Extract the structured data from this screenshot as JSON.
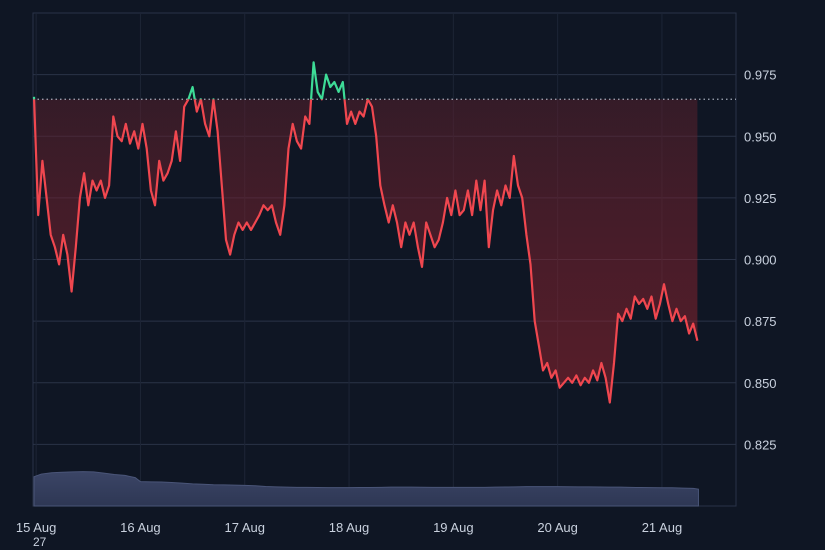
{
  "chart_data": {
    "type": "line",
    "title": "",
    "xlabel": "",
    "ylabel": "",
    "ylim": [
      0.8,
      1.0
    ],
    "y_ticks": [
      "0.975",
      "0.950",
      "0.925",
      "0.900",
      "0.875",
      "0.850",
      "0.825"
    ],
    "x_ticks": [
      {
        "label": "15 Aug",
        "day": 15
      },
      {
        "label": "16 Aug",
        "day": 16
      },
      {
        "label": "17 Aug",
        "day": 17
      },
      {
        "label": "18 Aug",
        "day": 18
      },
      {
        "label": "19 Aug",
        "day": 19
      },
      {
        "label": "20 Aug",
        "day": 20
      },
      {
        "label": "21 Aug",
        "day": 21
      }
    ],
    "xlim": [
      14.97,
      21.71
    ],
    "reference_line": 0.965,
    "grid": true,
    "legend": "none",
    "colors": {
      "above_reference": "#3ddc97",
      "below_reference": "#f0474f",
      "volume": "#3b4566",
      "reference_line": "#c9d1de"
    },
    "series": [
      {
        "values": [
          [
            14.98,
            0.966
          ],
          [
            15.02,
            0.918
          ],
          [
            15.06,
            0.94
          ],
          [
            15.1,
            0.925
          ],
          [
            15.14,
            0.91
          ],
          [
            15.18,
            0.905
          ],
          [
            15.22,
            0.898
          ],
          [
            15.26,
            0.91
          ],
          [
            15.3,
            0.902
          ],
          [
            15.34,
            0.887
          ],
          [
            15.38,
            0.905
          ],
          [
            15.42,
            0.925
          ],
          [
            15.46,
            0.935
          ],
          [
            15.5,
            0.922
          ],
          [
            15.54,
            0.932
          ],
          [
            15.58,
            0.928
          ],
          [
            15.62,
            0.932
          ],
          [
            15.66,
            0.925
          ],
          [
            15.7,
            0.93
          ],
          [
            15.74,
            0.958
          ],
          [
            15.78,
            0.95
          ],
          [
            15.82,
            0.948
          ],
          [
            15.86,
            0.955
          ],
          [
            15.9,
            0.947
          ],
          [
            15.94,
            0.952
          ],
          [
            15.98,
            0.945
          ],
          [
            16.02,
            0.955
          ],
          [
            16.06,
            0.945
          ],
          [
            16.1,
            0.928
          ],
          [
            16.14,
            0.922
          ],
          [
            16.18,
            0.94
          ],
          [
            16.22,
            0.932
          ],
          [
            16.26,
            0.935
          ],
          [
            16.3,
            0.94
          ],
          [
            16.34,
            0.952
          ],
          [
            16.38,
            0.94
          ],
          [
            16.42,
            0.962
          ],
          [
            16.46,
            0.965
          ],
          [
            16.5,
            0.97
          ],
          [
            16.54,
            0.96
          ],
          [
            16.58,
            0.965
          ],
          [
            16.62,
            0.955
          ],
          [
            16.66,
            0.95
          ],
          [
            16.7,
            0.965
          ],
          [
            16.74,
            0.952
          ],
          [
            16.78,
            0.93
          ],
          [
            16.82,
            0.908
          ],
          [
            16.86,
            0.902
          ],
          [
            16.9,
            0.91
          ],
          [
            16.94,
            0.915
          ],
          [
            16.98,
            0.912
          ],
          [
            17.02,
            0.915
          ],
          [
            17.06,
            0.912
          ],
          [
            17.1,
            0.915
          ],
          [
            17.14,
            0.918
          ],
          [
            17.18,
            0.922
          ],
          [
            17.22,
            0.92
          ],
          [
            17.26,
            0.922
          ],
          [
            17.3,
            0.915
          ],
          [
            17.34,
            0.91
          ],
          [
            17.38,
            0.922
          ],
          [
            17.42,
            0.945
          ],
          [
            17.46,
            0.955
          ],
          [
            17.5,
            0.948
          ],
          [
            17.54,
            0.945
          ],
          [
            17.58,
            0.958
          ],
          [
            17.62,
            0.955
          ],
          [
            17.66,
            0.98
          ],
          [
            17.7,
            0.968
          ],
          [
            17.74,
            0.965
          ],
          [
            17.78,
            0.975
          ],
          [
            17.82,
            0.97
          ],
          [
            17.86,
            0.972
          ],
          [
            17.9,
            0.968
          ],
          [
            17.94,
            0.972
          ],
          [
            17.98,
            0.955
          ],
          [
            18.02,
            0.96
          ],
          [
            18.06,
            0.955
          ],
          [
            18.1,
            0.96
          ],
          [
            18.14,
            0.958
          ],
          [
            18.18,
            0.965
          ],
          [
            18.22,
            0.962
          ],
          [
            18.26,
            0.95
          ],
          [
            18.3,
            0.93
          ],
          [
            18.34,
            0.922
          ],
          [
            18.38,
            0.915
          ],
          [
            18.42,
            0.922
          ],
          [
            18.46,
            0.915
          ],
          [
            18.5,
            0.905
          ],
          [
            18.54,
            0.915
          ],
          [
            18.58,
            0.91
          ],
          [
            18.62,
            0.915
          ],
          [
            18.66,
            0.905
          ],
          [
            18.7,
            0.897
          ],
          [
            18.74,
            0.915
          ],
          [
            18.78,
            0.91
          ],
          [
            18.82,
            0.905
          ],
          [
            18.86,
            0.908
          ],
          [
            18.9,
            0.915
          ],
          [
            18.94,
            0.925
          ],
          [
            18.98,
            0.918
          ],
          [
            19.02,
            0.928
          ],
          [
            19.06,
            0.918
          ],
          [
            19.1,
            0.92
          ],
          [
            19.14,
            0.928
          ],
          [
            19.18,
            0.918
          ],
          [
            19.22,
            0.932
          ],
          [
            19.26,
            0.92
          ],
          [
            19.3,
            0.932
          ],
          [
            19.34,
            0.905
          ],
          [
            19.38,
            0.92
          ],
          [
            19.42,
            0.928
          ],
          [
            19.46,
            0.922
          ],
          [
            19.5,
            0.93
          ],
          [
            19.54,
            0.925
          ],
          [
            19.58,
            0.942
          ],
          [
            19.62,
            0.93
          ],
          [
            19.66,
            0.925
          ],
          [
            19.7,
            0.91
          ],
          [
            19.74,
            0.898
          ],
          [
            19.78,
            0.875
          ],
          [
            19.82,
            0.865
          ],
          [
            19.86,
            0.855
          ],
          [
            19.9,
            0.858
          ],
          [
            19.94,
            0.852
          ],
          [
            19.98,
            0.855
          ],
          [
            20.02,
            0.848
          ],
          [
            20.06,
            0.85
          ],
          [
            20.1,
            0.852
          ],
          [
            20.14,
            0.85
          ],
          [
            20.18,
            0.853
          ],
          [
            20.22,
            0.849
          ],
          [
            20.26,
            0.852
          ],
          [
            20.3,
            0.85
          ],
          [
            20.34,
            0.855
          ],
          [
            20.38,
            0.851
          ],
          [
            20.42,
            0.858
          ],
          [
            20.46,
            0.852
          ],
          [
            20.5,
            0.842
          ],
          [
            20.54,
            0.858
          ],
          [
            20.58,
            0.878
          ],
          [
            20.62,
            0.875
          ],
          [
            20.66,
            0.88
          ],
          [
            20.7,
            0.876
          ],
          [
            20.74,
            0.885
          ],
          [
            20.78,
            0.882
          ],
          [
            20.82,
            0.884
          ],
          [
            20.86,
            0.88
          ],
          [
            20.9,
            0.885
          ],
          [
            20.94,
            0.876
          ],
          [
            20.98,
            0.882
          ],
          [
            21.02,
            0.89
          ],
          [
            21.06,
            0.882
          ],
          [
            21.1,
            0.875
          ],
          [
            21.14,
            0.88
          ],
          [
            21.18,
            0.875
          ],
          [
            21.22,
            0.877
          ],
          [
            21.26,
            0.87
          ],
          [
            21.3,
            0.874
          ],
          [
            21.34,
            0.867
          ]
        ]
      }
    ],
    "volume": [
      [
        14.98,
        0.33
      ],
      [
        15.05,
        0.36
      ],
      [
        15.15,
        0.375
      ],
      [
        15.25,
        0.38
      ],
      [
        15.35,
        0.385
      ],
      [
        15.45,
        0.388
      ],
      [
        15.55,
        0.385
      ],
      [
        15.65,
        0.37
      ],
      [
        15.75,
        0.355
      ],
      [
        15.85,
        0.345
      ],
      [
        15.95,
        0.32
      ],
      [
        16.0,
        0.275
      ],
      [
        16.1,
        0.272
      ],
      [
        16.2,
        0.27
      ],
      [
        16.3,
        0.265
      ],
      [
        16.4,
        0.258
      ],
      [
        16.5,
        0.25
      ],
      [
        16.6,
        0.245
      ],
      [
        16.7,
        0.24
      ],
      [
        16.8,
        0.238
      ],
      [
        16.9,
        0.235
      ],
      [
        17.0,
        0.232
      ],
      [
        17.1,
        0.228
      ],
      [
        17.2,
        0.22
      ],
      [
        17.3,
        0.215
      ],
      [
        17.4,
        0.212
      ],
      [
        17.5,
        0.21
      ],
      [
        17.6,
        0.21
      ],
      [
        17.7,
        0.208
      ],
      [
        17.8,
        0.207
      ],
      [
        17.9,
        0.207
      ],
      [
        18.0,
        0.207
      ],
      [
        18.1,
        0.208
      ],
      [
        18.2,
        0.209
      ],
      [
        18.3,
        0.21
      ],
      [
        18.4,
        0.212
      ],
      [
        18.5,
        0.212
      ],
      [
        18.6,
        0.212
      ],
      [
        18.7,
        0.211
      ],
      [
        18.8,
        0.21
      ],
      [
        18.9,
        0.21
      ],
      [
        19.0,
        0.21
      ],
      [
        19.1,
        0.21
      ],
      [
        19.2,
        0.21
      ],
      [
        19.3,
        0.21
      ],
      [
        19.4,
        0.212
      ],
      [
        19.5,
        0.214
      ],
      [
        19.6,
        0.216
      ],
      [
        19.7,
        0.218
      ],
      [
        19.8,
        0.218
      ],
      [
        19.9,
        0.218
      ],
      [
        20.0,
        0.218
      ],
      [
        20.1,
        0.217
      ],
      [
        20.2,
        0.216
      ],
      [
        20.3,
        0.215
      ],
      [
        20.4,
        0.214
      ],
      [
        20.5,
        0.213
      ],
      [
        20.6,
        0.212
      ],
      [
        20.7,
        0.21
      ],
      [
        20.8,
        0.208
      ],
      [
        20.9,
        0.207
      ],
      [
        21.0,
        0.206
      ],
      [
        21.1,
        0.205
      ],
      [
        21.2,
        0.202
      ],
      [
        21.3,
        0.198
      ],
      [
        21.35,
        0.19
      ]
    ],
    "annotations": [
      "27"
    ]
  }
}
